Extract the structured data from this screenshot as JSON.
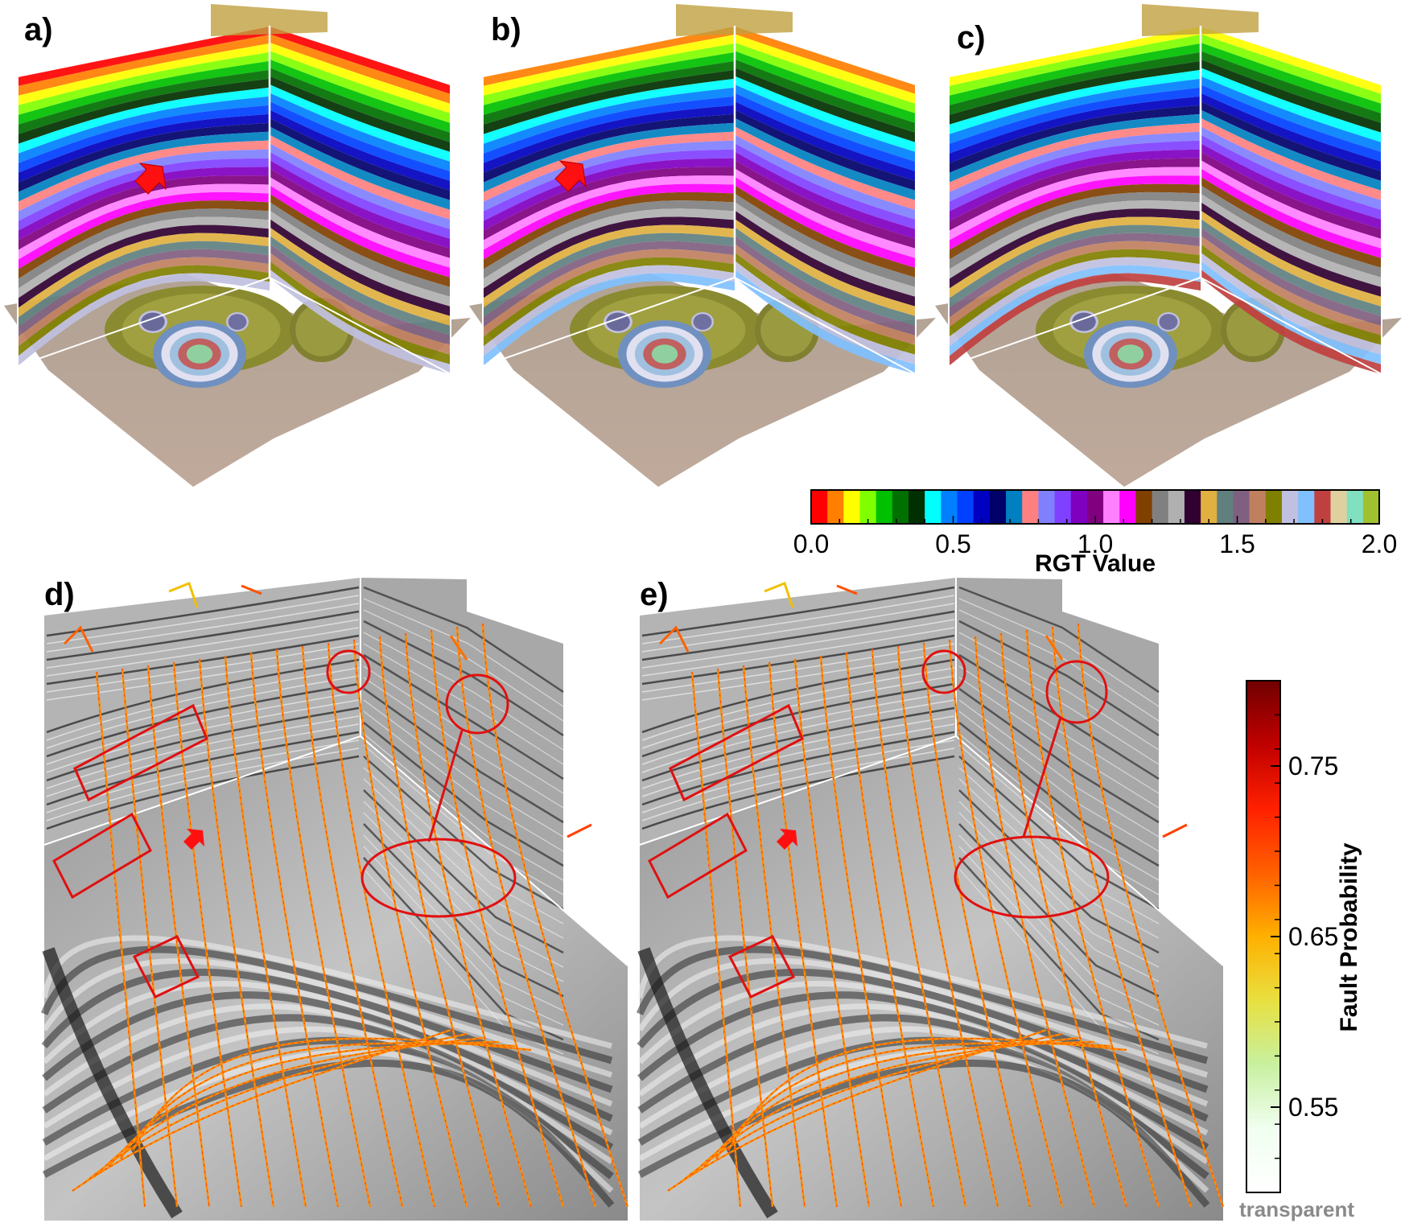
{
  "panels": {
    "a": {
      "label": "a)"
    },
    "b": {
      "label": "b)"
    },
    "c": {
      "label": "c)"
    },
    "d": {
      "label": "d)"
    },
    "e": {
      "label": "e)"
    }
  },
  "rgt_colorbar": {
    "title": "RGT Value",
    "ticks": [
      "0.0",
      "0.5",
      "1.0",
      "1.5",
      "2.0"
    ],
    "range": [
      0.0,
      2.0
    ],
    "colors": [
      "#ff0000",
      "#ff7f00",
      "#ffff00",
      "#80ff00",
      "#00c000",
      "#007000",
      "#003000",
      "#00ffff",
      "#0080ff",
      "#0040ff",
      "#0000c0",
      "#00006a",
      "#0080c0",
      "#ff8080",
      "#8080ff",
      "#8040ff",
      "#8000c0",
      "#800080",
      "#ff80ff",
      "#ff00ff",
      "#804000",
      "#808080",
      "#b0b0b0",
      "#300030",
      "#e0b040",
      "#608080",
      "#806080",
      "#c08060",
      "#808000",
      "#c0c0e0",
      "#80c0ff",
      "#c04040",
      "#e0d0a0",
      "#80e0c0",
      "#a0c030"
    ]
  },
  "fault_colorbar": {
    "title": "Fault Probability",
    "ticks": [
      "0.75",
      "0.65",
      "0.55"
    ],
    "tick_values": [
      0.75,
      0.65,
      0.55
    ],
    "range": [
      0.5,
      0.8
    ],
    "bottom_label": "transparent",
    "colors": [
      "#ffffff",
      "#f0fff0",
      "#c8f0a0",
      "#e8e040",
      "#ffb000",
      "#ff6000",
      "#ff2000",
      "#c00000",
      "#700000"
    ]
  }
}
